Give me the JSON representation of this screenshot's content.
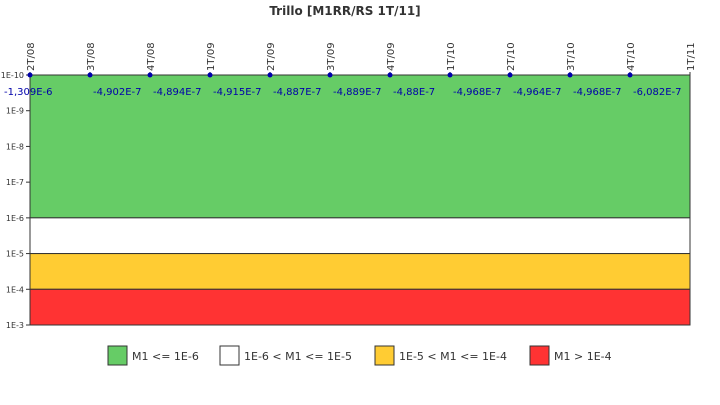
{
  "chart_data": {
    "type": "line",
    "title": "Trillo [M1RR/RS 1T/11]",
    "y_scale": "log",
    "y_axis_reversed": true,
    "y_range": [
      1e-10,
      0.001
    ],
    "y_tick_labels": [
      "1E-10",
      "1E-9",
      "1E-8",
      "1E-7",
      "1E-6",
      "1E-5",
      "1E-4",
      "1E-3"
    ],
    "x_tick_labels": [
      "2T/08",
      "3T/08",
      "4T/08",
      "1T/09",
      "2T/09",
      "3T/09",
      "4T/09",
      "1T/10",
      "2T/10",
      "3T/10",
      "4T/10",
      "1T/11"
    ],
    "series": [
      {
        "x": [
          "2T/08",
          "3T/08",
          "4T/08",
          "1T/09",
          "2T/09",
          "3T/09",
          "4T/09",
          "1T/10",
          "2T/10",
          "3T/10",
          "4T/10"
        ],
        "data_labels": [
          "-1,309E-6",
          "-4,902E-7",
          "-4,894E-7",
          "-4,915E-7",
          "-4,887E-7",
          "-4,889E-7",
          "-4,88E-7",
          "-4,968E-7",
          "-4,964E-7",
          "-4,968E-7",
          "-6,082E-7"
        ],
        "color": "#0000aa"
      }
    ],
    "bands": [
      {
        "from": 1e-10,
        "to": 1e-06,
        "color": "#66cc66",
        "label": "M1 <= 1E-6"
      },
      {
        "from": 1e-06,
        "to": 1e-05,
        "color": "#ffffff",
        "label": "1E-6 < M1 <= 1E-5"
      },
      {
        "from": 1e-05,
        "to": 0.0001,
        "color": "#ffcc33",
        "label": "1E-5 < M1 <= 1E-4"
      },
      {
        "from": 0.0001,
        "to": 0.001,
        "color": "#ff3333",
        "label": "M1 > 1E-4"
      }
    ],
    "legend_position": "bottom",
    "grid": false
  }
}
